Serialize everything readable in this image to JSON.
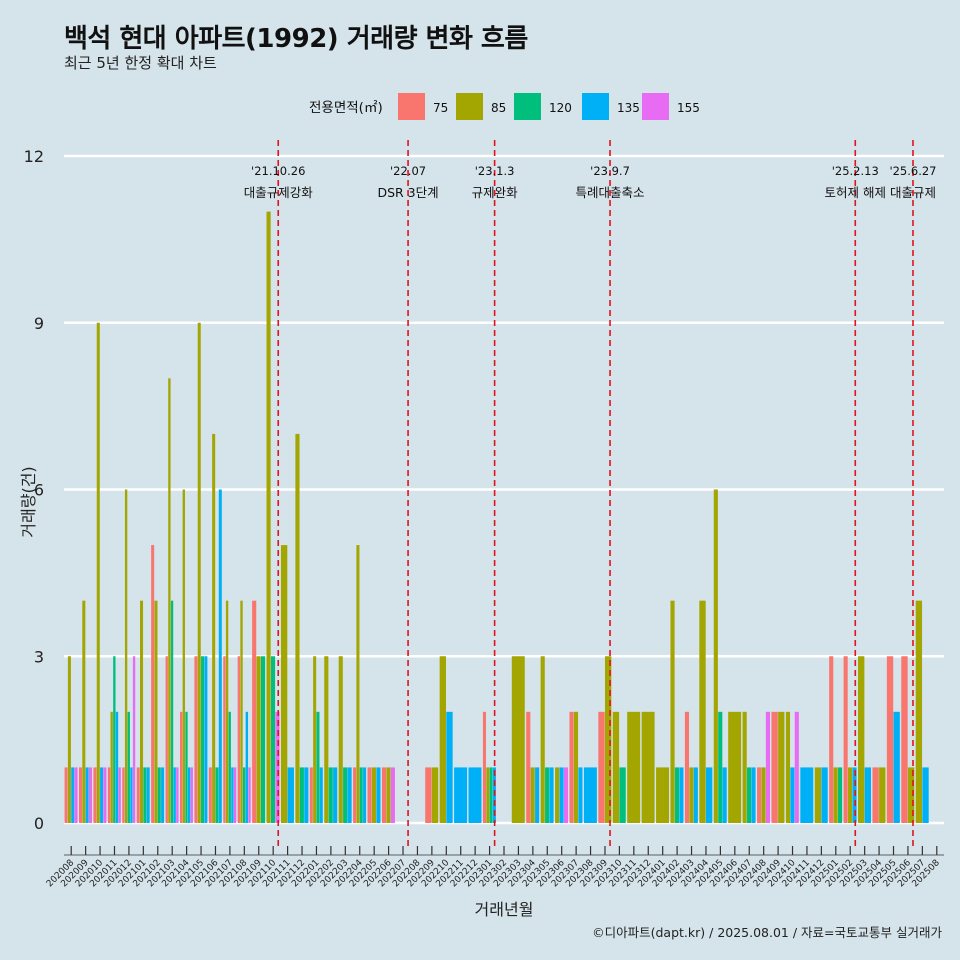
{
  "title": "백석 현대 아파트(1992) 거래량 변화 흐름",
  "subtitle": "최근 5년 한정 확대 차트",
  "caption": "©디아파트(dapt.kr) / 2025.08.01 / 자료=국토교통부 실거래가",
  "chart_data": {
    "type": "bar",
    "xlabel": "거래년월",
    "ylabel": "거래량(건)",
    "ylim": [
      0,
      12
    ],
    "yticks": [
      0,
      3,
      6,
      9,
      12
    ],
    "grid": true,
    "legend": {
      "title": "전용면적(㎡)",
      "position": "top"
    },
    "series": [
      {
        "name": "75",
        "color": "#f8766d"
      },
      {
        "name": "85",
        "color": "#a3a500"
      },
      {
        "name": "120",
        "color": "#00bf7d"
      },
      {
        "name": "135",
        "color": "#00b0f6"
      },
      {
        "name": "155",
        "color": "#e76bf3"
      }
    ],
    "months": [
      "202008",
      "202009",
      "202010",
      "202011",
      "202012",
      "202101",
      "202102",
      "202103",
      "202104",
      "202105",
      "202106",
      "202107",
      "202108",
      "202109",
      "202110",
      "202111",
      "202112",
      "202201",
      "202202",
      "202203",
      "202204",
      "202205",
      "202206",
      "202207",
      "202208",
      "202209",
      "202210",
      "202211",
      "202212",
      "202301",
      "202302",
      "202303",
      "202304",
      "202305",
      "202306",
      "202307",
      "202308",
      "202309",
      "202310",
      "202311",
      "202312",
      "202401",
      "202402",
      "202403",
      "202404",
      "202405",
      "202406",
      "202407",
      "202408",
      "202409",
      "202410",
      "202411",
      "202412",
      "202501",
      "202502",
      "202503",
      "202504",
      "202505",
      "202506",
      "202507",
      "202508"
    ],
    "data": {
      "202008": [
        1,
        3,
        0,
        1,
        1
      ],
      "202009": [
        1,
        4,
        0,
        1,
        1
      ],
      "202010": [
        1,
        9,
        0,
        1,
        1
      ],
      "202011": [
        1,
        2,
        3,
        2,
        1
      ],
      "202012": [
        1,
        6,
        2,
        1,
        3
      ],
      "202101": [
        1,
        4,
        1,
        1,
        0
      ],
      "202102": [
        5,
        4,
        1,
        1,
        0
      ],
      "202103": [
        3,
        8,
        4,
        1,
        1
      ],
      "202104": [
        2,
        6,
        2,
        1,
        1
      ],
      "202105": [
        3,
        9,
        3,
        3,
        0
      ],
      "202106": [
        1,
        7,
        1,
        6,
        0
      ],
      "202107": [
        3,
        4,
        2,
        1,
        1
      ],
      "202108": [
        3,
        4,
        1,
        2,
        1
      ],
      "202109": [
        4,
        3,
        3,
        0,
        0
      ],
      "202110": [
        0,
        11,
        3,
        0,
        2
      ],
      "202111": [
        0,
        5,
        0,
        1,
        0
      ],
      "202112": [
        0,
        7,
        1,
        1,
        0
      ],
      "202201": [
        1,
        3,
        2,
        1,
        0
      ],
      "202202": [
        0,
        3,
        1,
        1,
        0
      ],
      "202203": [
        0,
        3,
        1,
        1,
        0
      ],
      "202204": [
        1,
        5,
        1,
        1,
        0
      ],
      "202205": [
        1,
        1,
        0,
        1,
        0
      ],
      "202206": [
        1,
        1,
        0,
        0,
        1
      ],
      "202207": [
        0,
        0,
        0,
        0,
        0
      ],
      "202208": [
        0,
        0,
        0,
        0,
        0
      ],
      "202209": [
        1,
        1,
        0,
        0,
        0
      ],
      "202210": [
        0,
        3,
        0,
        2,
        0
      ],
      "202211": [
        0,
        0,
        0,
        1,
        0
      ],
      "202212": [
        0,
        0,
        0,
        1,
        0
      ],
      "202301": [
        2,
        1,
        1,
        1,
        0
      ],
      "202302": [
        0,
        0,
        0,
        0,
        0
      ],
      "202303": [
        0,
        3,
        0,
        0,
        0
      ],
      "202304": [
        2,
        1,
        0,
        1,
        0
      ],
      "202305": [
        0,
        3,
        1,
        1,
        0
      ],
      "202306": [
        0,
        1,
        0,
        1,
        1
      ],
      "202307": [
        2,
        2,
        0,
        1,
        0
      ],
      "202308": [
        0,
        0,
        0,
        1,
        0
      ],
      "202309": [
        2,
        3,
        0,
        0,
        0
      ],
      "202310": [
        0,
        2,
        1,
        0,
        0
      ],
      "202311": [
        0,
        2,
        0,
        0,
        0
      ],
      "202312": [
        0,
        2,
        0,
        0,
        0
      ],
      "202401": [
        0,
        1,
        0,
        0,
        0
      ],
      "202402": [
        0,
        4,
        1,
        1,
        0
      ],
      "202403": [
        2,
        1,
        0,
        1,
        0
      ],
      "202404": [
        0,
        4,
        0,
        1,
        0
      ],
      "202405": [
        0,
        6,
        2,
        1,
        0
      ],
      "202406": [
        0,
        2,
        0,
        0,
        0
      ],
      "202407": [
        0,
        2,
        1,
        1,
        0
      ],
      "202408": [
        1,
        1,
        0,
        0,
        2
      ],
      "202409": [
        2,
        2,
        0,
        0,
        0
      ],
      "202410": [
        0,
        2,
        0,
        1,
        2
      ],
      "202411": [
        0,
        0,
        0,
        1,
        0
      ],
      "202412": [
        0,
        1,
        0,
        1,
        0
      ],
      "202501": [
        3,
        1,
        1,
        0,
        0
      ],
      "202502": [
        3,
        1,
        0,
        1,
        0
      ],
      "202503": [
        0,
        3,
        0,
        1,
        0
      ],
      "202504": [
        1,
        1,
        0,
        0,
        0
      ],
      "202505": [
        3,
        0,
        0,
        2,
        0
      ],
      "202506": [
        3,
        1,
        0,
        0,
        0
      ],
      "202507": [
        0,
        4,
        0,
        1,
        0
      ],
      "202508": [
        0,
        0,
        0,
        0,
        0
      ]
    },
    "events": [
      {
        "month": "202110",
        "date": "'21.10.26",
        "label": "대출규제강화"
      },
      {
        "month": "202207",
        "date": "'22.07",
        "label": "DSR 3단계"
      },
      {
        "month": "202301",
        "date": "'23.1.3",
        "label": "규제완화"
      },
      {
        "month": "202309",
        "date": "'23.9.7",
        "label": "특례대출축소"
      },
      {
        "month": "202502",
        "date": "'25.2.13",
        "label": "토허제 해제"
      },
      {
        "month": "202506",
        "date": "'25.6.27",
        "label": "대출규제"
      }
    ]
  }
}
